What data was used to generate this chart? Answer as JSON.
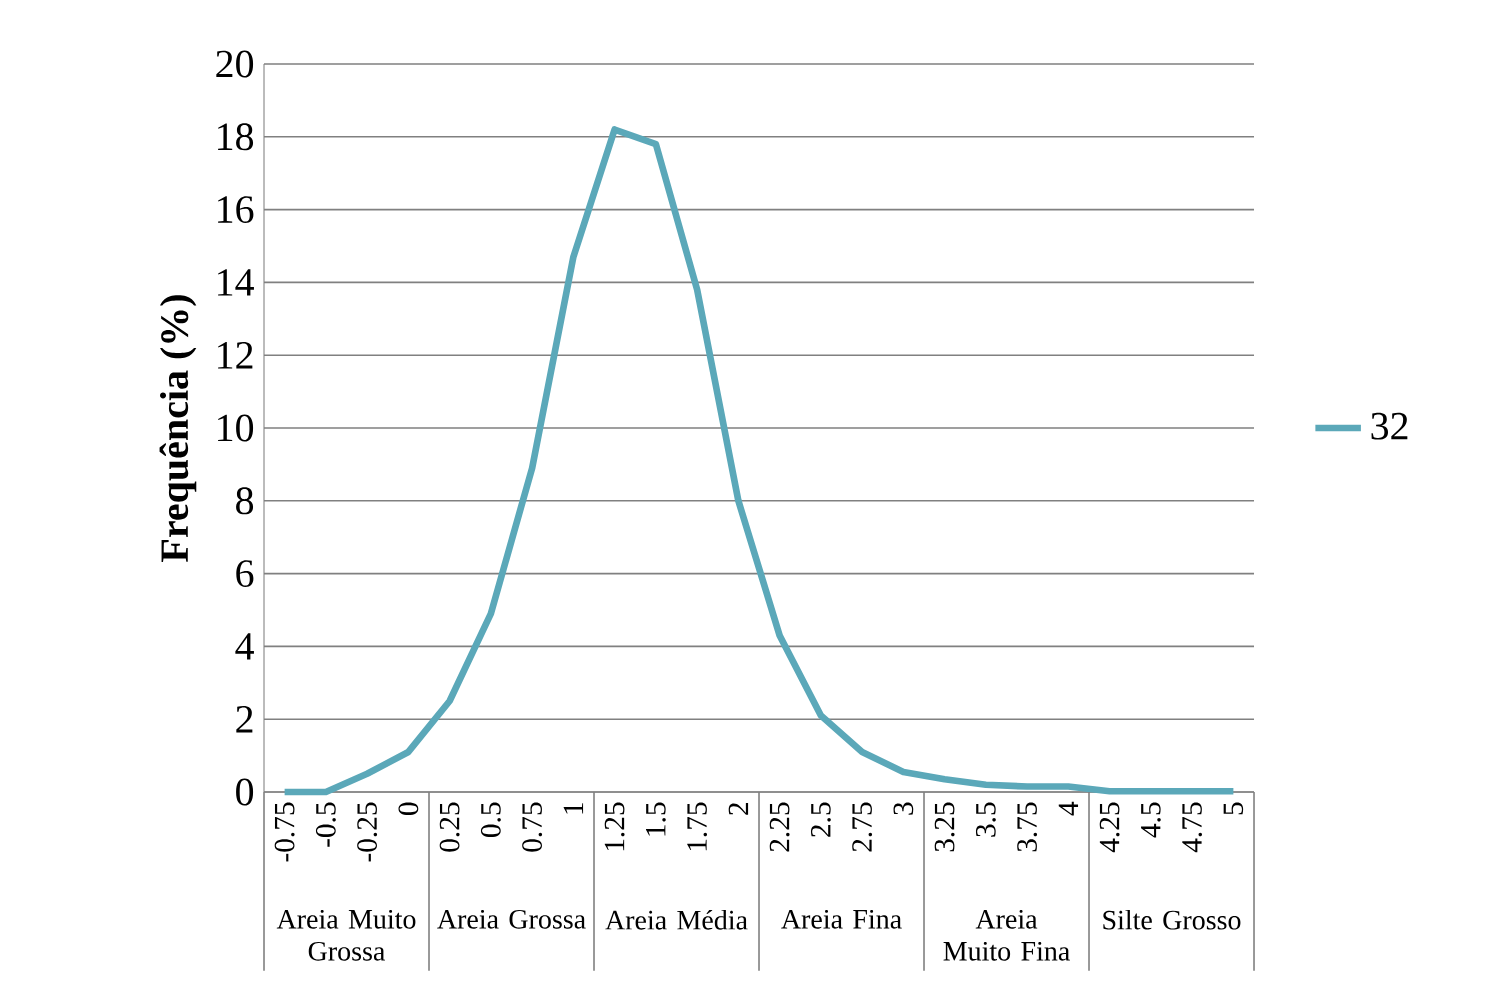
{
  "chart_data": {
    "type": "line",
    "ylabel": "Frequência (%)",
    "categories": [
      "-0.75",
      "-0.5",
      "-0.25",
      "0",
      "0.25",
      "0.5",
      "0.75",
      "1",
      "1.25",
      "1.5",
      "1.75",
      "2",
      "2.25",
      "2.5",
      "2.75",
      "3",
      "3.25",
      "3.5",
      "3.75",
      "4",
      "4.25",
      "4.5",
      "4.75",
      "5"
    ],
    "series": [
      {
        "name": "32",
        "color": "#5ba8b9",
        "values": [
          0,
          0,
          0.5,
          1.1,
          2.5,
          4.9,
          8.9,
          14.7,
          18.2,
          17.8,
          13.8,
          8.0,
          4.3,
          2.1,
          1.1,
          0.55,
          0.35,
          0.2,
          0.15,
          0.15,
          0.02,
          0.02,
          0.02,
          0.02
        ]
      }
    ],
    "ylim": [
      0,
      20
    ],
    "yticks": [
      0,
      2,
      4,
      6,
      8,
      10,
      12,
      14,
      16,
      18,
      20
    ],
    "grid": "y",
    "legend": "right",
    "marker": "none",
    "annotations": [
      "Areia Muito Grossa",
      "Areia Grossa",
      "Areia Média",
      "Areia Fina",
      "Areia Muito Fina",
      "Silte Grosso"
    ]
  }
}
